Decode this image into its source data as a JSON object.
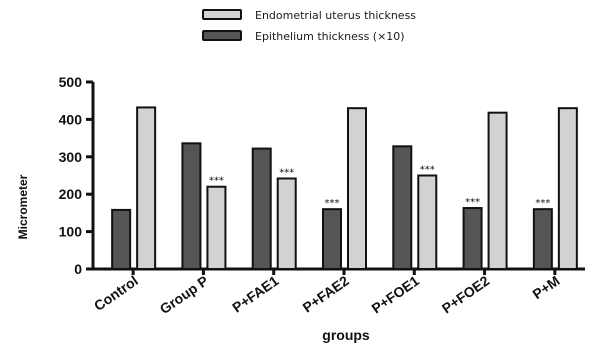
{
  "chart_data": {
    "type": "bar",
    "categories": [
      "Control",
      "Group P",
      "P+FAE1",
      "P+FAE2",
      "P+FOE1",
      "P+FOE2",
      "P+M"
    ],
    "series": [
      {
        "name": "Epithelium thickness (×10)",
        "values": [
          158,
          336,
          322,
          160,
          328,
          163,
          160
        ],
        "color": "#555555",
        "annotations": [
          "",
          "",
          "",
          "***",
          "",
          "***",
          "***"
        ]
      },
      {
        "name": "Endometrial uterus thickness",
        "values": [
          432,
          220,
          242,
          430,
          250,
          418,
          430
        ],
        "color": "#d2d2d2",
        "annotations": [
          "",
          "***",
          "***",
          "",
          "***",
          "",
          ""
        ]
      }
    ],
    "legend_order": [
      1,
      0
    ],
    "legend_position": "top-center",
    "xlabel": "groups",
    "ylabel": "Micrometer",
    "ylim": [
      0,
      500
    ],
    "yticks": [
      0,
      100,
      200,
      300,
      400,
      500
    ],
    "grid": false
  }
}
